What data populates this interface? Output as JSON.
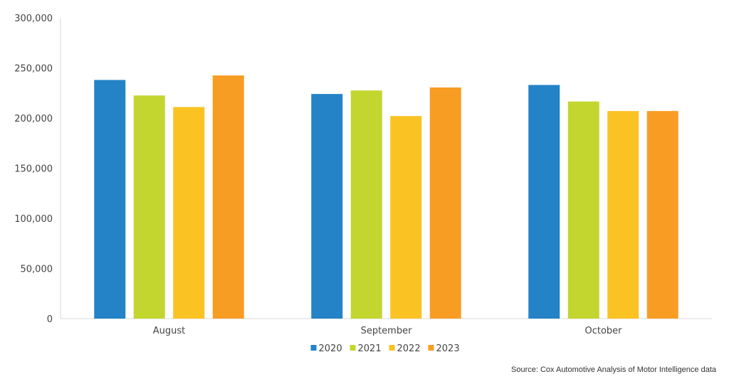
{
  "chart_data": {
    "type": "bar",
    "categories": [
      "August",
      "September",
      "October"
    ],
    "series": [
      {
        "name": "2020",
        "color": "#2383c6",
        "values": [
          238000,
          224000,
          233000
        ]
      },
      {
        "name": "2021",
        "color": "#c3d62f",
        "values": [
          222500,
          227500,
          216500
        ]
      },
      {
        "name": "2022",
        "color": "#fbc224",
        "values": [
          211000,
          202000,
          207000
        ]
      },
      {
        "name": "2023",
        "color": "#f89d24",
        "values": [
          242500,
          230500,
          207000
        ]
      }
    ],
    "y_ticks": [
      "0",
      "50,000",
      "100,000",
      "150,000",
      "200,000",
      "250,000",
      "300,000"
    ],
    "ylim": [
      0,
      300000
    ],
    "title": "",
    "xlabel": "",
    "ylabel": "",
    "grid": false,
    "legend_position": "bottom-center"
  },
  "source_note": "Source: Cox Automotive Analysis of Motor Intelligence data"
}
